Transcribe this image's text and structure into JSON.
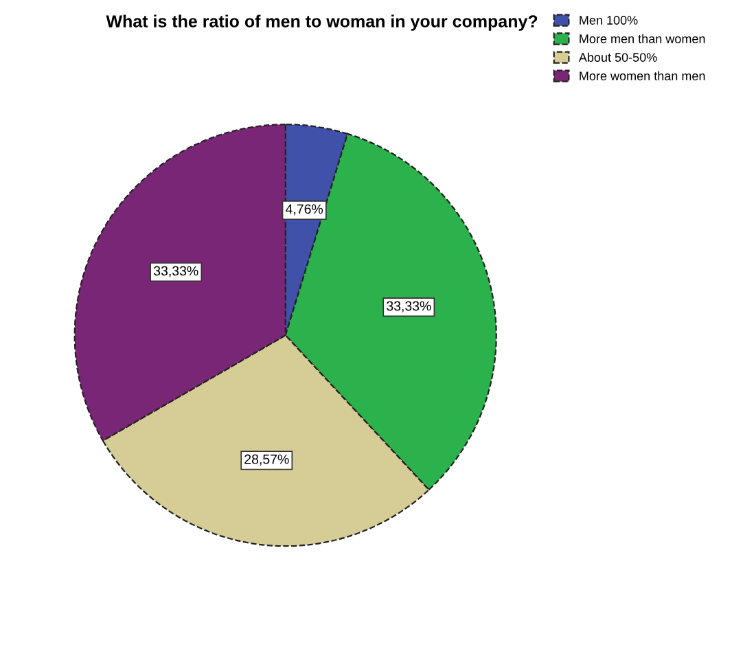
{
  "chart_data": {
    "type": "pie",
    "title": "What is the ratio of men to woman in your company?",
    "categories": [
      "Men 100%",
      "More men than women",
      "About 50-50%",
      "More women than men"
    ],
    "values": [
      4.76,
      33.33,
      28.57,
      33.33
    ],
    "value_labels": [
      "4,76%",
      "33,33%",
      "28,57%",
      "33,33%"
    ],
    "colors": [
      "#3f51a8",
      "#2bb24c",
      "#d5cc96",
      "#7a2677"
    ],
    "legend": "top right"
  }
}
